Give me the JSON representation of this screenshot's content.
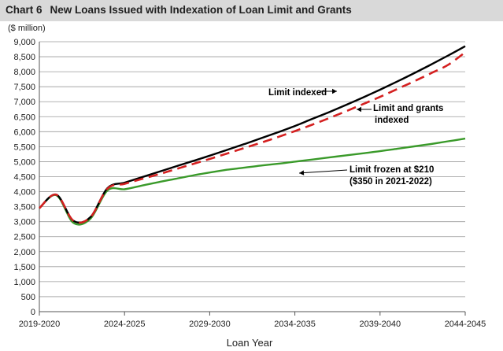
{
  "chart_data": {
    "type": "line",
    "title_number": "Chart 6",
    "title": "New Loans Issued with Indexation of Loan Limit and Grants",
    "units": "($ million)",
    "xlabel": "Loan Year",
    "ylabel": "",
    "ylim": [
      0,
      9000
    ],
    "yticks": [
      0,
      500,
      1000,
      1500,
      2000,
      2500,
      3000,
      3500,
      4000,
      4500,
      5000,
      5500,
      6000,
      6500,
      7000,
      7500,
      8000,
      8500,
      9000
    ],
    "ytick_labels": [
      "0",
      "500",
      "1,000",
      "1,500",
      "2,000",
      "2,500",
      "3,000",
      "3,500",
      "4,000",
      "4,500",
      "5,000",
      "5,500",
      "6,000",
      "6,500",
      "7,000",
      "7,500",
      "8,000",
      "8,500",
      "9,000"
    ],
    "x_categories": [
      "2019-2020",
      "2020-2021",
      "2021-2022",
      "2022-2023",
      "2023-2024",
      "2024-2025",
      "2025-2026",
      "2026-2027",
      "2027-2028",
      "2028-2029",
      "2029-2030",
      "2030-2031",
      "2031-2032",
      "2032-2033",
      "2033-2034",
      "2034-2035",
      "2035-2036",
      "2036-2037",
      "2037-2038",
      "2038-2039",
      "2039-2040",
      "2040-2041",
      "2041-2042",
      "2042-2043",
      "2043-2044",
      "2044-2045"
    ],
    "xtick_labels": [
      "2019-2020",
      "2024-2025",
      "2029-2030",
      "2034-2035",
      "2039-2040",
      "2044-2045"
    ],
    "xtick_indices": [
      0,
      5,
      10,
      15,
      20,
      25
    ],
    "grid": true,
    "series": [
      {
        "name": "Limit indexed",
        "color": "#000000",
        "dash": "solid",
        "values": [
          3450,
          3900,
          3030,
          3150,
          4120,
          4300,
          4480,
          4660,
          4840,
          5020,
          5200,
          5390,
          5580,
          5780,
          5980,
          6190,
          6420,
          6650,
          6890,
          7140,
          7400,
          7670,
          7950,
          8240,
          8540,
          8850
        ]
      },
      {
        "name": "Limit and grants indexed",
        "color": "#d42020",
        "dash": "dashed",
        "values": [
          3450,
          3900,
          3030,
          3150,
          4100,
          4260,
          4420,
          4580,
          4750,
          4920,
          5090,
          5270,
          5450,
          5630,
          5820,
          6020,
          6230,
          6450,
          6680,
          6920,
          7160,
          7420,
          7680,
          7950,
          8230,
          8650
        ]
      },
      {
        "name": "Limit frozen at $210 ($350 in 2021-2022)",
        "color": "#3a9a2a",
        "dash": "solid",
        "values": [
          3450,
          3880,
          2960,
          3100,
          4040,
          4080,
          4200,
          4320,
          4430,
          4540,
          4640,
          4730,
          4800,
          4870,
          4930,
          5000,
          5070,
          5140,
          5210,
          5280,
          5350,
          5430,
          5510,
          5590,
          5680,
          5770
        ]
      }
    ],
    "annotations": [
      {
        "lines": [
          "Limit indexed"
        ],
        "arrow": "right"
      },
      {
        "lines": [
          "Limit and grants",
          "indexed"
        ],
        "arrow": "left"
      },
      {
        "lines": [
          "Limit frozen at $210",
          "($350 in 2021-2022)"
        ],
        "arrow": "left"
      }
    ]
  }
}
